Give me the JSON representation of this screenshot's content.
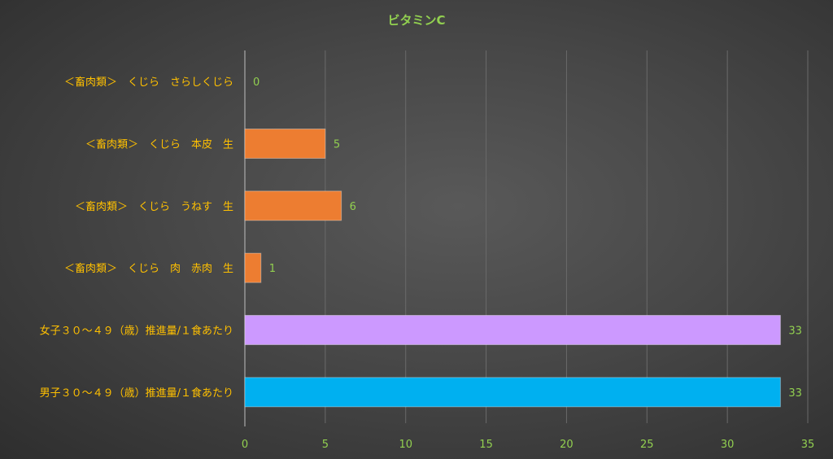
{
  "chart_data": {
    "type": "bar",
    "orientation": "horizontal",
    "title": "ビタミンC",
    "categories": [
      "＜畜肉類＞　くじら　さらしくじら",
      "＜畜肉類＞　くじら　本皮　生",
      "＜畜肉類＞　くじら　うねす　生",
      "＜畜肉類＞　くじら　肉　赤肉　生",
      "女子３０～４９（歳）推進量/１食あたり",
      "男子３０～４９（歳）推進量/１食あたり"
    ],
    "values": [
      0,
      5,
      6,
      1,
      33.3,
      33.3
    ],
    "data_labels": [
      "0",
      "5",
      "6",
      "1",
      "33",
      "33"
    ],
    "bar_colors": [
      "#ed7d31",
      "#ed7d31",
      "#ed7d31",
      "#ed7d31",
      "#cc99ff",
      "#00b0f0"
    ],
    "xlim": [
      0,
      35
    ],
    "xticks": [
      "0",
      "5",
      "10",
      "15",
      "20",
      "25",
      "30",
      "35"
    ],
    "xtick_values": [
      0,
      5,
      10,
      15,
      20,
      25,
      30,
      35
    ],
    "grid": true,
    "legend": "none",
    "colors": {
      "title": "#92d050",
      "category_label": "#ffc000",
      "tick_label": "#92d050",
      "data_label": "#92d050",
      "gridline": "#6a6a6a"
    }
  }
}
